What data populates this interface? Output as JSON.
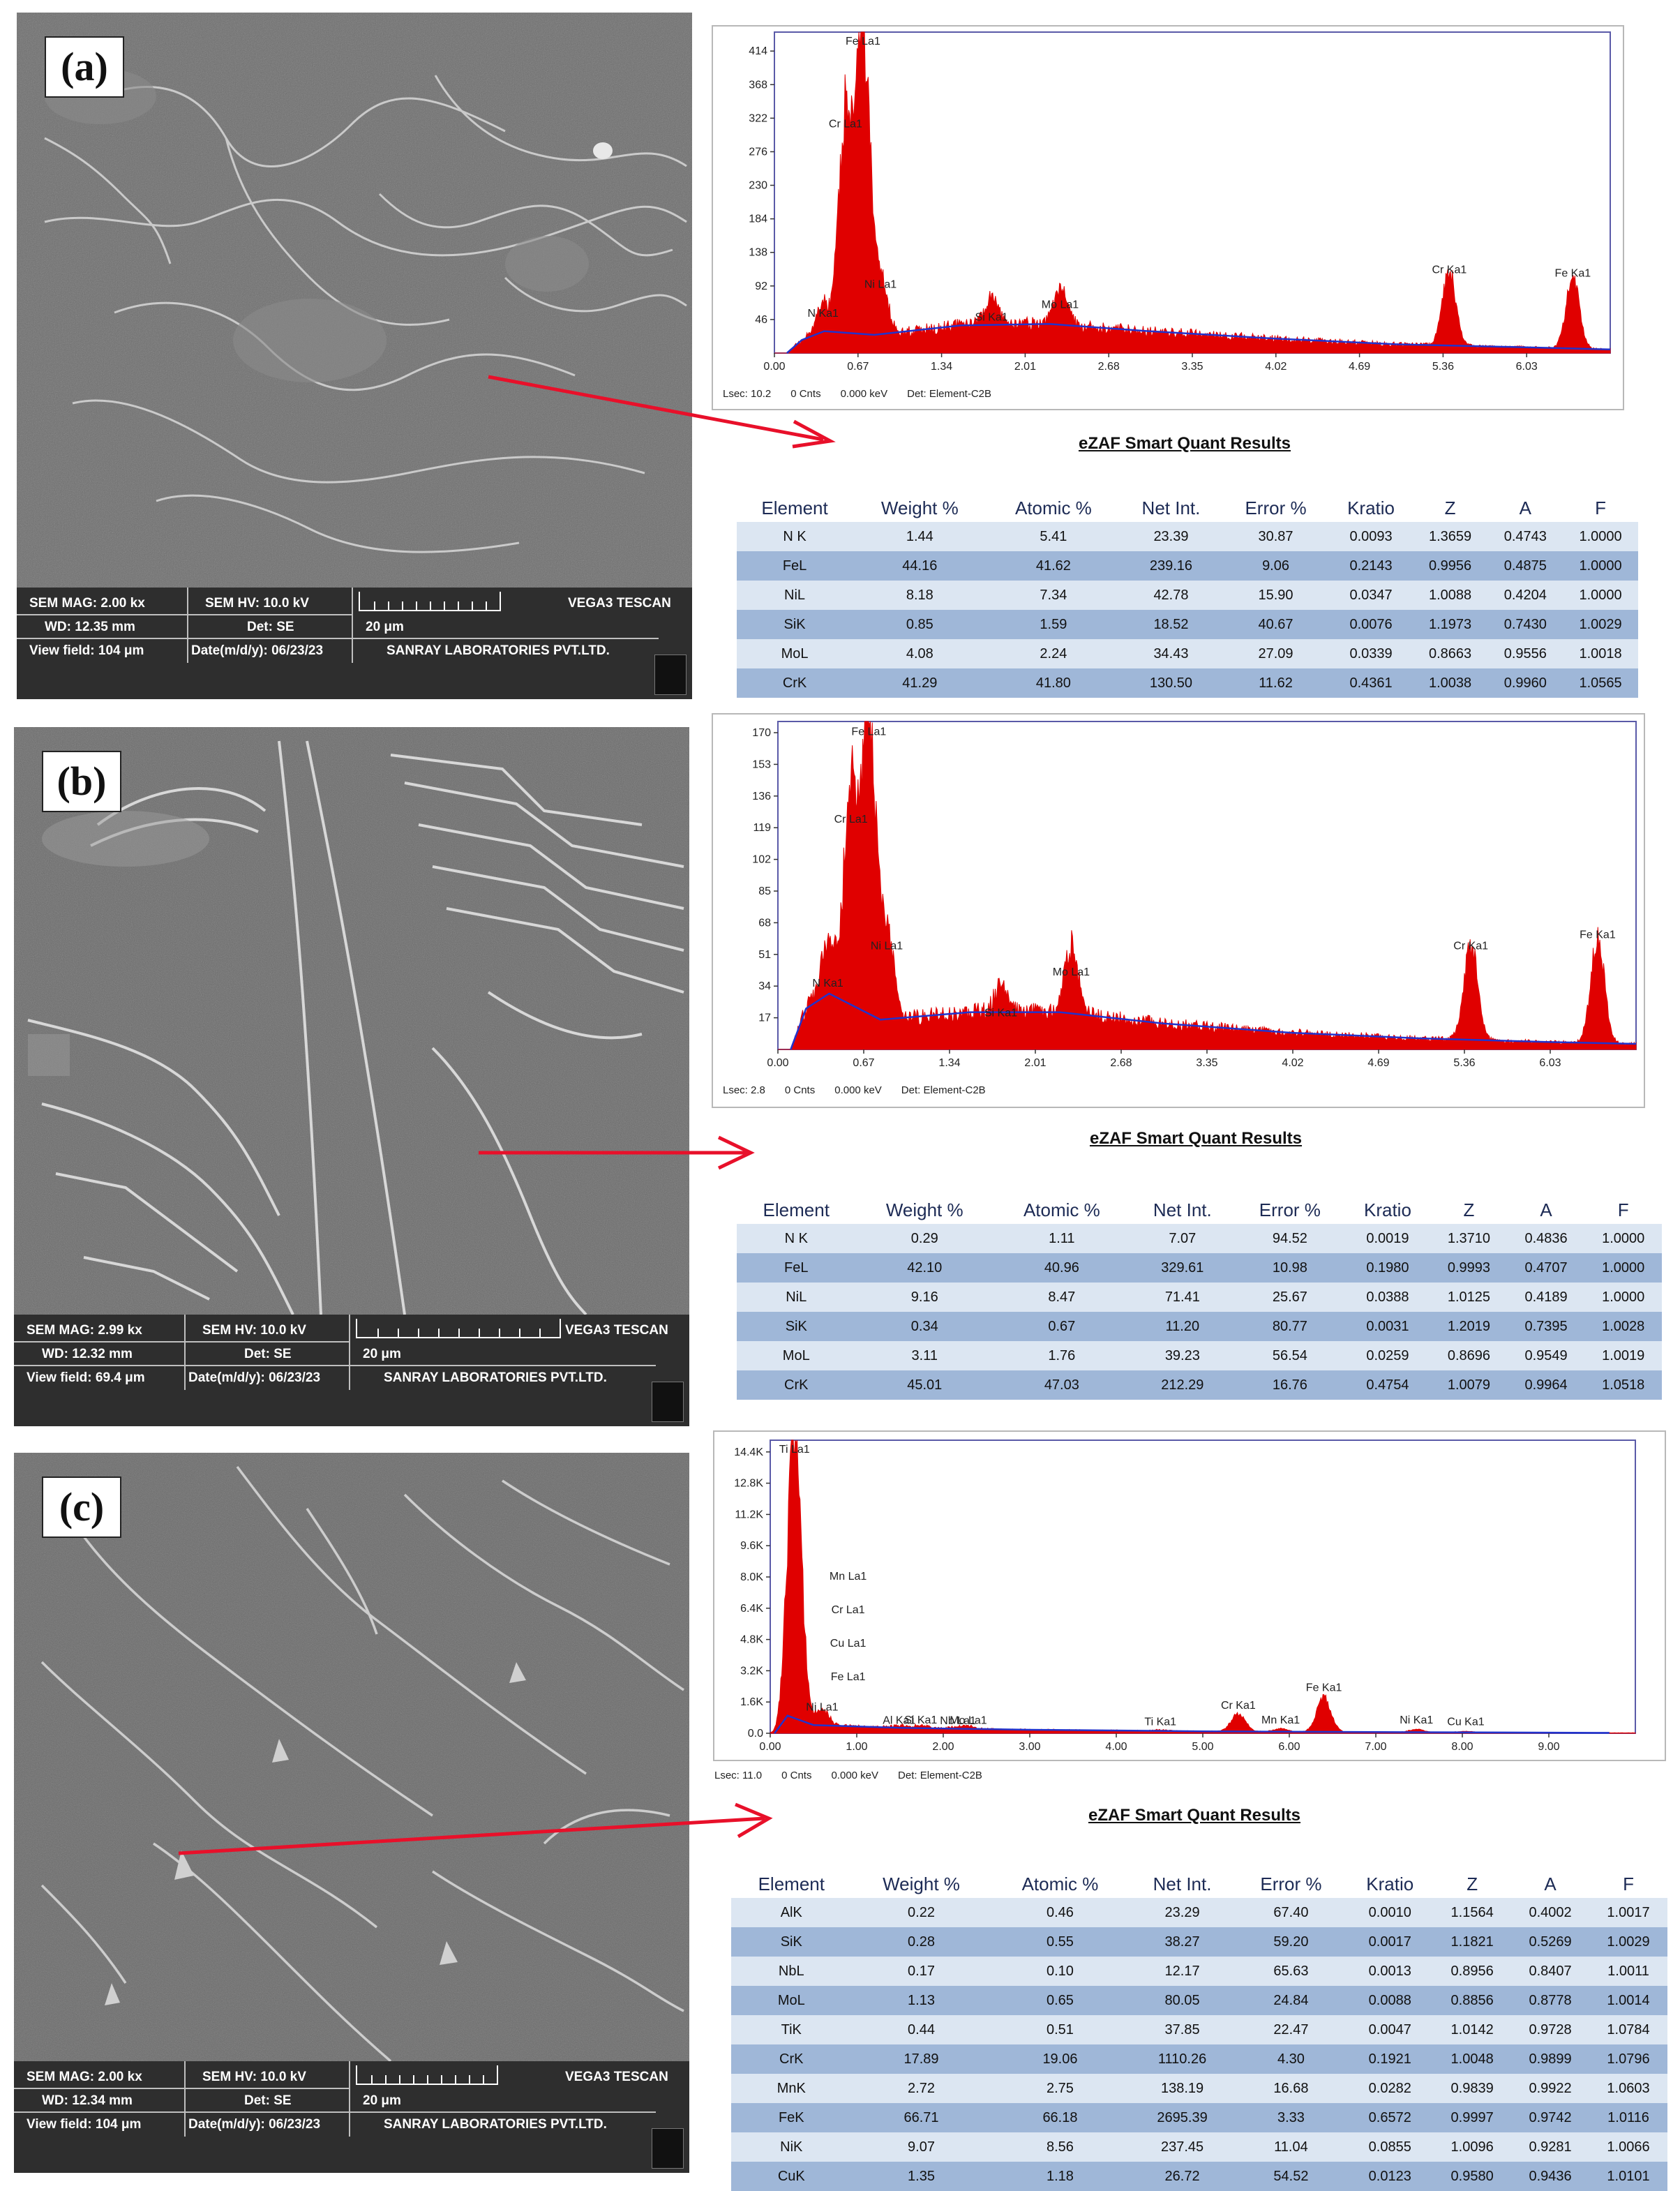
{
  "panels": [
    {
      "label": "(a)",
      "sem": {
        "mag": "SEM MAG: 2.00 kx",
        "hv": "SEM HV: 10.0 kV",
        "wd": "WD: 12.35 mm",
        "det": "Det: SE",
        "scale": "20 μm",
        "field": "View field: 104 μm",
        "date": "Date(m/d/y): 06/23/23",
        "brand": "VEGA3 TESCAN",
        "lab": "SANRAY LABORATORIES PVT.LTD."
      },
      "spectrum": {
        "lsec": "Lsec: 10.2",
        "cnts": "0 Cnts",
        "kev": "0.000 keV",
        "det": "Det: Element-C2B"
      },
      "chart_data": {
        "type": "area",
        "x_ticks": [
          "0.00",
          "0.67",
          "1.34",
          "2.01",
          "2.68",
          "3.35",
          "4.02",
          "4.69",
          "5.36",
          "6.03"
        ],
        "y_ticks": [
          "46",
          "92",
          "138",
          "184",
          "230",
          "276",
          "322",
          "368",
          "414"
        ],
        "xlim": [
          0,
          6.7
        ],
        "ylim": [
          0,
          440
        ],
        "peaks": [
          {
            "label": "N Ka1",
            "x": 0.39,
            "y": 40
          },
          {
            "label": "Cr La1",
            "x": 0.57,
            "y": 300
          },
          {
            "label": "Fe La1",
            "x": 0.71,
            "y": 420
          },
          {
            "label": "Ni La1",
            "x": 0.85,
            "y": 80
          },
          {
            "label": "Si Ka1",
            "x": 1.74,
            "y": 35
          },
          {
            "label": "Mo La1",
            "x": 2.29,
            "y": 52
          },
          {
            "label": "Cr Ka1",
            "x": 5.41,
            "y": 100
          },
          {
            "label": "Fe Ka1",
            "x": 6.4,
            "y": 95
          }
        ],
        "background": [
          [
            0.1,
            0
          ],
          [
            0.22,
            18
          ],
          [
            0.4,
            30
          ],
          [
            0.8,
            25
          ],
          [
            1.5,
            38
          ],
          [
            2.2,
            40
          ],
          [
            3.0,
            30
          ],
          [
            4.0,
            20
          ],
          [
            5.0,
            12
          ],
          [
            6.0,
            8
          ],
          [
            6.7,
            5
          ]
        ]
      },
      "quant": {
        "title": "eZAF Smart Quant Results",
        "headers": [
          "Element",
          "Weight %",
          "Atomic %",
          "Net Int.",
          "Error %",
          "Kratio",
          "Z",
          "A",
          "F"
        ],
        "rows": [
          [
            "N K",
            "1.44",
            "5.41",
            "23.39",
            "30.87",
            "0.0093",
            "1.3659",
            "0.4743",
            "1.0000"
          ],
          [
            "FeL",
            "44.16",
            "41.62",
            "239.16",
            "9.06",
            "0.2143",
            "0.9956",
            "0.4875",
            "1.0000"
          ],
          [
            "NiL",
            "8.18",
            "7.34",
            "42.78",
            "15.90",
            "0.0347",
            "1.0088",
            "0.4204",
            "1.0000"
          ],
          [
            "SiK",
            "0.85",
            "1.59",
            "18.52",
            "40.67",
            "0.0076",
            "1.1973",
            "0.7430",
            "1.0029"
          ],
          [
            "MoL",
            "4.08",
            "2.24",
            "34.43",
            "27.09",
            "0.0339",
            "0.8663",
            "0.9556",
            "1.0018"
          ],
          [
            "CrK",
            "41.29",
            "41.80",
            "130.50",
            "11.62",
            "0.4361",
            "1.0038",
            "0.9960",
            "1.0565"
          ]
        ]
      }
    },
    {
      "label": "(b)",
      "sem": {
        "mag": "SEM MAG: 2.99 kx",
        "hv": "SEM HV: 10.0 kV",
        "wd": "WD: 12.32 mm",
        "det": "Det: SE",
        "scale": "20 μm",
        "field": "View field: 69.4 μm",
        "date": "Date(m/d/y): 06/23/23",
        "brand": "VEGA3 TESCAN",
        "lab": "SANRAY LABORATORIES PVT.LTD."
      },
      "spectrum": {
        "lsec": "Lsec: 2.8",
        "cnts": "0 Cnts",
        "kev": "0.000 keV",
        "det": "Det: Element-C2B"
      },
      "chart_data": {
        "type": "area",
        "x_ticks": [
          "0.00",
          "0.67",
          "1.34",
          "2.01",
          "2.68",
          "3.35",
          "4.02",
          "4.69",
          "5.36",
          "6.03"
        ],
        "y_ticks": [
          "17",
          "34",
          "51",
          "68",
          "85",
          "102",
          "119",
          "136",
          "153",
          "170"
        ],
        "xlim": [
          0,
          6.7
        ],
        "ylim": [
          0,
          176
        ],
        "peaks": [
          {
            "label": "N Ka1",
            "x": 0.39,
            "y": 30
          },
          {
            "label": "Cr La1",
            "x": 0.57,
            "y": 118
          },
          {
            "label": "Fe La1",
            "x": 0.71,
            "y": 165
          },
          {
            "label": "Ni La1",
            "x": 0.85,
            "y": 50
          },
          {
            "label": "Si Ka1",
            "x": 1.74,
            "y": 14
          },
          {
            "label": "Mo La1",
            "x": 2.29,
            "y": 36
          },
          {
            "label": "Cr Ka1",
            "x": 5.41,
            "y": 50
          },
          {
            "label": "Fe Ka1",
            "x": 6.4,
            "y": 56
          }
        ],
        "background": [
          [
            0.1,
            0
          ],
          [
            0.22,
            22
          ],
          [
            0.4,
            30
          ],
          [
            0.8,
            16
          ],
          [
            1.5,
            20
          ],
          [
            2.2,
            20
          ],
          [
            3.0,
            14
          ],
          [
            4.0,
            9
          ],
          [
            5.0,
            6
          ],
          [
            6.0,
            4
          ],
          [
            6.7,
            3
          ]
        ]
      },
      "quant": {
        "title": "eZAF Smart Quant Results",
        "headers": [
          "Element",
          "Weight %",
          "Atomic %",
          "Net Int.",
          "Error %",
          "Kratio",
          "Z",
          "A",
          "F"
        ],
        "rows": [
          [
            "N K",
            "0.29",
            "1.11",
            "7.07",
            "94.52",
            "0.0019",
            "1.3710",
            "0.4836",
            "1.0000"
          ],
          [
            "FeL",
            "42.10",
            "40.96",
            "329.61",
            "10.98",
            "0.1980",
            "0.9993",
            "0.4707",
            "1.0000"
          ],
          [
            "NiL",
            "9.16",
            "8.47",
            "71.41",
            "25.67",
            "0.0388",
            "1.0125",
            "0.4189",
            "1.0000"
          ],
          [
            "SiK",
            "0.34",
            "0.67",
            "11.20",
            "80.77",
            "0.0031",
            "1.2019",
            "0.7395",
            "1.0028"
          ],
          [
            "MoL",
            "3.11",
            "1.76",
            "39.23",
            "56.54",
            "0.0259",
            "0.8696",
            "0.9549",
            "1.0019"
          ],
          [
            "CrK",
            "45.01",
            "47.03",
            "212.29",
            "16.76",
            "0.4754",
            "1.0079",
            "0.9964",
            "1.0518"
          ]
        ]
      }
    },
    {
      "label": "(c)",
      "sem": {
        "mag": "SEM MAG: 2.00 kx",
        "hv": "SEM HV: 10.0 kV",
        "wd": "WD: 12.34 mm",
        "det": "Det: SE",
        "scale": "20 μm",
        "field": "View field: 104 μm",
        "date": "Date(m/d/y): 06/23/23",
        "brand": "VEGA3 TESCAN",
        "lab": "SANRAY LABORATORIES PVT.LTD."
      },
      "spectrum": {
        "lsec": "Lsec: 11.0",
        "cnts": "0 Cnts",
        "kev": "0.000 keV",
        "det": "Det: Element-C2B"
      },
      "chart_data": {
        "type": "area",
        "x_ticks": [
          "0.00",
          "1.00",
          "2.00",
          "3.00",
          "4.00",
          "5.00",
          "6.00",
          "7.00",
          "8.00",
          "9.00"
        ],
        "y_ticks": [
          "0.0",
          "1.6K",
          "3.2K",
          "4.8K",
          "6.4K",
          "8.0K",
          "9.6K",
          "11.2K",
          "12.8K",
          "14.4K"
        ],
        "xlim": [
          0,
          10
        ],
        "ylim": [
          0,
          15000
        ],
        "peaks": [
          {
            "label": "Ti La1",
            "x": 0.28,
            "y": 15000
          },
          {
            "label": "Mn La1",
            "x": 0.3,
            "y": 0
          },
          {
            "label": "Cr La1",
            "x": 0.3,
            "y": 0
          },
          {
            "label": "Cu La1",
            "x": 0.3,
            "y": 0
          },
          {
            "label": "Fe La1",
            "x": 0.3,
            "y": 0
          },
          {
            "label": "Ni La1",
            "x": 0.6,
            "y": 800
          },
          {
            "label": "Al Ka1",
            "x": 1.49,
            "y": 120
          },
          {
            "label": "Si Ka1",
            "x": 1.74,
            "y": 150
          },
          {
            "label": "Nb La1",
            "x": 2.17,
            "y": 100
          },
          {
            "label": "Mo La1",
            "x": 2.29,
            "y": 120
          },
          {
            "label": "Ti Ka1",
            "x": 4.51,
            "y": 60
          },
          {
            "label": "Cr Ka1",
            "x": 5.41,
            "y": 900
          },
          {
            "label": "Mn Ka1",
            "x": 5.9,
            "y": 150
          },
          {
            "label": "Fe Ka1",
            "x": 6.4,
            "y": 1800
          },
          {
            "label": "Ni Ka1",
            "x": 7.47,
            "y": 150
          },
          {
            "label": "Cu Ka1",
            "x": 8.04,
            "y": 60
          }
        ],
        "background": [
          [
            0.05,
            0
          ],
          [
            0.2,
            900
          ],
          [
            0.5,
            420
          ],
          [
            1.5,
            280
          ],
          [
            3.0,
            180
          ],
          [
            5.0,
            100
          ],
          [
            7.0,
            60
          ],
          [
            9.7,
            20
          ]
        ]
      },
      "quant": {
        "title": "eZAF Smart Quant Results",
        "headers": [
          "Element",
          "Weight %",
          "Atomic %",
          "Net Int.",
          "Error %",
          "Kratio",
          "Z",
          "A",
          "F"
        ],
        "rows": [
          [
            "AlK",
            "0.22",
            "0.46",
            "23.29",
            "67.40",
            "0.0010",
            "1.1564",
            "0.4002",
            "1.0017"
          ],
          [
            "SiK",
            "0.28",
            "0.55",
            "38.27",
            "59.20",
            "0.0017",
            "1.1821",
            "0.5269",
            "1.0029"
          ],
          [
            "NbL",
            "0.17",
            "0.10",
            "12.17",
            "65.63",
            "0.0013",
            "0.8956",
            "0.8407",
            "1.0011"
          ],
          [
            "MoL",
            "1.13",
            "0.65",
            "80.05",
            "24.84",
            "0.0088",
            "0.8856",
            "0.8778",
            "1.0014"
          ],
          [
            "TiK",
            "0.44",
            "0.51",
            "37.85",
            "22.47",
            "0.0047",
            "1.0142",
            "0.9728",
            "1.0784"
          ],
          [
            "CrK",
            "17.89",
            "19.06",
            "1110.26",
            "4.30",
            "0.1921",
            "1.0048",
            "0.9899",
            "1.0796"
          ],
          [
            "MnK",
            "2.72",
            "2.75",
            "138.19",
            "16.68",
            "0.0282",
            "0.9839",
            "0.9922",
            "1.0603"
          ],
          [
            "FeK",
            "66.71",
            "66.18",
            "2695.39",
            "3.33",
            "0.6572",
            "0.9997",
            "0.9742",
            "1.0116"
          ],
          [
            "NiK",
            "9.07",
            "8.56",
            "237.45",
            "11.04",
            "0.0855",
            "1.0096",
            "0.9281",
            "1.0066"
          ],
          [
            "CuK",
            "1.35",
            "1.18",
            "26.72",
            "54.52",
            "0.0123",
            "0.9580",
            "0.9436",
            "1.0101"
          ]
        ]
      }
    }
  ],
  "colors": {
    "peak": "#e00000",
    "background_fit": "#2233cc",
    "plot_border": "#5a5aa8",
    "arrow": "#e8102a"
  }
}
